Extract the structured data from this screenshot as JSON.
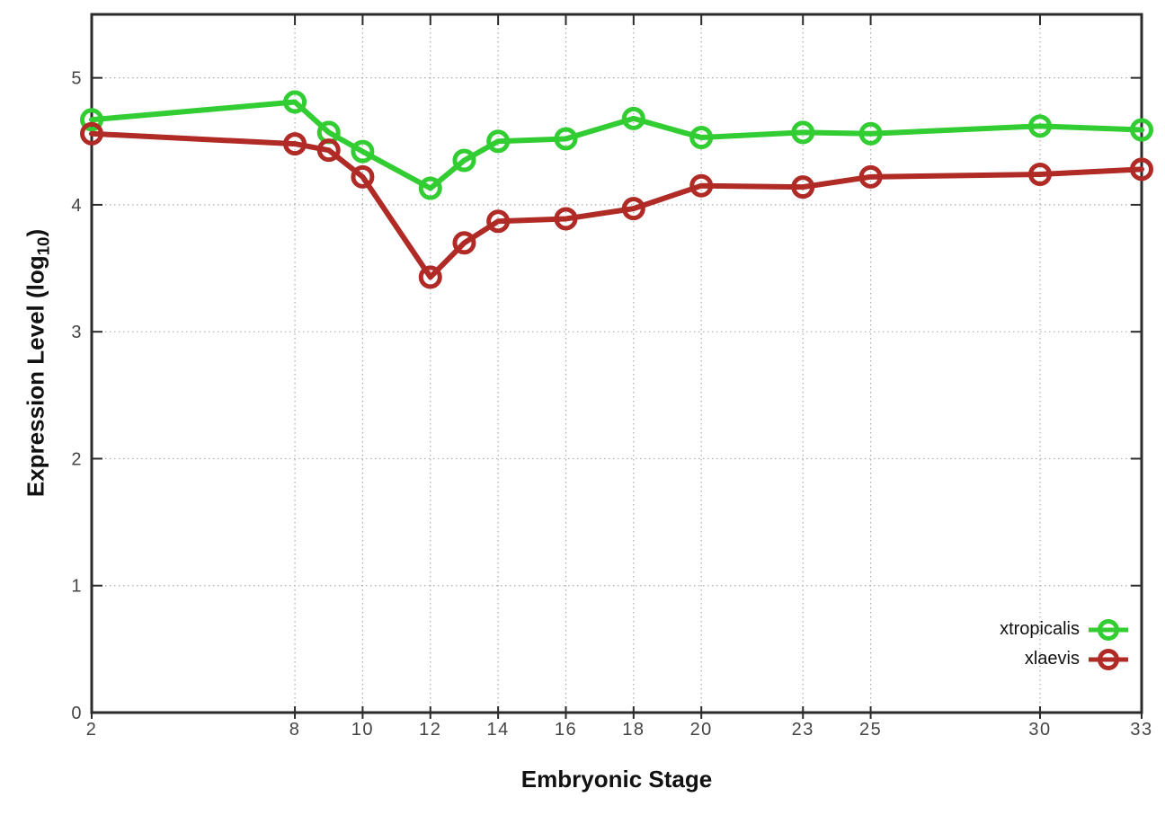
{
  "figure": {
    "xlabel": "Embryonic Stage",
    "ylabel": "Expression Level (log10)",
    "ylabel_parts": {
      "prefix": "Expression Level (log",
      "subscript": "10",
      "suffix": ")"
    },
    "background": "#ffffff"
  },
  "legend": {
    "entries": [
      {
        "label": "xtropicalis",
        "color": "#32cd32"
      },
      {
        "label": "xlaevis",
        "color": "#b02a26"
      }
    ]
  },
  "style": {
    "axis_color": "#2b2b2b",
    "tick_label_color": "#454545",
    "grid_color": "#ababab",
    "line_width": 6,
    "marker_radius": 10.5,
    "marker_stroke": 5
  },
  "chart_data": {
    "type": "line",
    "title": "",
    "xlabel": "Embryonic Stage",
    "ylabel": "Expression Level (log10)",
    "x": [
      2,
      8,
      9,
      10,
      12,
      13,
      14,
      16,
      18,
      20,
      23,
      25,
      30,
      33
    ],
    "series": [
      {
        "name": "xtropicalis",
        "color": "#32cd32",
        "marker": "open-circle",
        "values": [
          4.67,
          4.81,
          4.57,
          4.42,
          4.13,
          4.35,
          4.5,
          4.52,
          4.68,
          4.53,
          4.57,
          4.56,
          4.62,
          4.59
        ]
      },
      {
        "name": "xlaevis",
        "color": "#b02a26",
        "marker": "open-circle",
        "values": [
          4.56,
          4.48,
          4.43,
          4.22,
          3.43,
          3.7,
          3.87,
          3.89,
          3.97,
          4.15,
          4.14,
          4.22,
          4.24,
          4.28
        ]
      }
    ],
    "x_ticks": [
      2,
      8,
      10,
      12,
      14,
      16,
      18,
      20,
      23,
      25,
      30,
      33
    ],
    "y_ticks": [
      0,
      1,
      2,
      3,
      4,
      5
    ],
    "xlim": [
      2,
      33
    ],
    "ylim": [
      0,
      5.5
    ],
    "grid": true,
    "legend_position": "bottom-right-inside"
  }
}
